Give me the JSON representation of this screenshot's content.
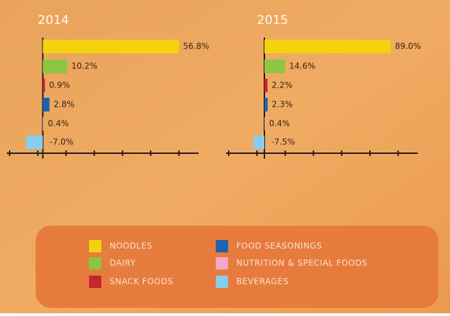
{
  "chart_data": [
    {
      "type": "bar",
      "orientation": "horizontal",
      "title": "2014",
      "categories": [
        "NOODLES",
        "DAIRY",
        "SNACK FOODS",
        "FOOD SEASONINGS",
        "NUTRITION & SPECIAL FOODS",
        "BEVERAGES"
      ],
      "colors": [
        "#f6d10e",
        "#8dc641",
        "#c2272f",
        "#1f63ad",
        "#f3a7c8",
        "#86cdee"
      ],
      "values": [
        56.8,
        10.2,
        0.9,
        2.8,
        0.4,
        -7.0
      ],
      "value_labels": [
        "56.8%",
        "10.2%",
        "0.9%",
        "2.8%",
        "0.4%",
        "-7.0%"
      ],
      "xlim": [
        -15,
        65
      ]
    },
    {
      "type": "bar",
      "orientation": "horizontal",
      "title": "2015",
      "categories": [
        "NOODLES",
        "DAIRY",
        "SNACK FOODS",
        "FOOD SEASONINGS",
        "NUTRITION & SPECIAL FOODS",
        "BEVERAGES"
      ],
      "colors": [
        "#f6d10e",
        "#8dc641",
        "#c2272f",
        "#1f63ad",
        "#f3a7c8",
        "#86cdee"
      ],
      "values": [
        89.0,
        14.6,
        2.2,
        2.3,
        0.4,
        -7.5
      ],
      "value_labels": [
        "89.0%",
        "14.6%",
        "2.2%",
        "2.3%",
        "0.4%",
        "-7.5%"
      ],
      "xlim": [
        -27,
        108
      ]
    }
  ]
}
